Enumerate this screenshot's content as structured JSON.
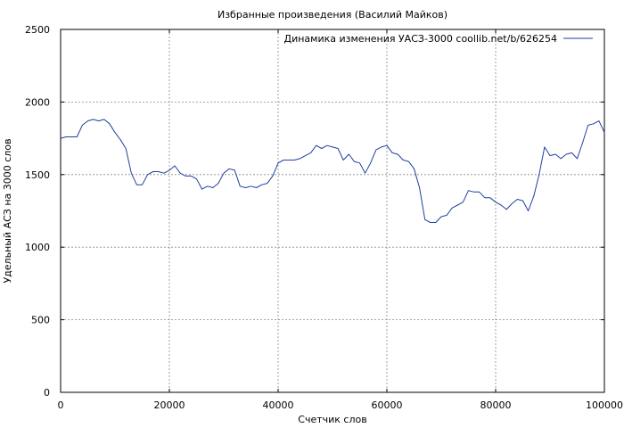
{
  "chart_data": {
    "type": "line",
    "title": "Избранные произведения (Василий Майков)",
    "xlabel": "Счетчик слов",
    "ylabel": "Удельный АСЗ на 3000 слов",
    "xlim": [
      0,
      100000
    ],
    "ylim": [
      0,
      2500
    ],
    "x_ticks": [
      0,
      20000,
      40000,
      60000,
      80000,
      100000
    ],
    "x_tick_labels": [
      "0",
      "20000",
      "40000",
      "60000",
      "80000",
      "100000"
    ],
    "y_ticks": [
      0,
      500,
      1000,
      1500,
      2000,
      2500
    ],
    "y_tick_labels": [
      "0",
      "500",
      "1000",
      "1500",
      "2000",
      "2500"
    ],
    "grid": true,
    "legend_position": "top-right",
    "series": [
      {
        "name": "Динамика изменения УАСЗ-3000 coollib.net/b/626254",
        "color": "#1f3f9f",
        "x": [
          0,
          1000,
          2000,
          3000,
          4000,
          5000,
          6000,
          7000,
          8000,
          9000,
          10000,
          11000,
          12000,
          13000,
          14000,
          15000,
          16000,
          17000,
          18000,
          19000,
          20000,
          21000,
          22000,
          23000,
          24000,
          25000,
          26000,
          27000,
          28000,
          29000,
          30000,
          31000,
          32000,
          33000,
          34000,
          35000,
          36000,
          37000,
          38000,
          39000,
          40000,
          41000,
          42000,
          43000,
          44000,
          45000,
          46000,
          47000,
          48000,
          49000,
          50000,
          51000,
          52000,
          53000,
          54000,
          55000,
          56000,
          57000,
          58000,
          59000,
          60000,
          61000,
          62000,
          63000,
          64000,
          65000,
          66000,
          67000,
          68000,
          69000,
          70000,
          71000,
          72000,
          73000,
          74000,
          75000,
          76000,
          77000,
          78000,
          79000,
          80000,
          81000,
          82000,
          83000,
          84000,
          85000,
          86000,
          87000,
          88000,
          89000,
          90000,
          91000,
          92000,
          93000,
          94000,
          95000,
          96000,
          97000,
          98000,
          99000,
          100000
        ],
        "values": [
          1750,
          1760,
          1760,
          1760,
          1840,
          1870,
          1880,
          1870,
          1880,
          1850,
          1790,
          1740,
          1680,
          1510,
          1430,
          1430,
          1500,
          1520,
          1520,
          1510,
          1530,
          1560,
          1510,
          1490,
          1490,
          1470,
          1400,
          1420,
          1410,
          1440,
          1510,
          1540,
          1530,
          1420,
          1410,
          1420,
          1410,
          1430,
          1440,
          1490,
          1580,
          1600,
          1600,
          1600,
          1610,
          1630,
          1650,
          1700,
          1680,
          1700,
          1690,
          1680,
          1600,
          1640,
          1590,
          1580,
          1510,
          1580,
          1670,
          1690,
          1700,
          1650,
          1640,
          1600,
          1590,
          1540,
          1410,
          1190,
          1170,
          1170,
          1210,
          1220,
          1270,
          1290,
          1310,
          1390,
          1380,
          1380,
          1340,
          1340,
          1310,
          1290,
          1260,
          1300,
          1330,
          1320,
          1250,
          1350,
          1500,
          1690,
          1630,
          1640,
          1610,
          1640,
          1650,
          1610,
          1720,
          1840,
          1850,
          1870,
          1790
        ]
      }
    ]
  }
}
